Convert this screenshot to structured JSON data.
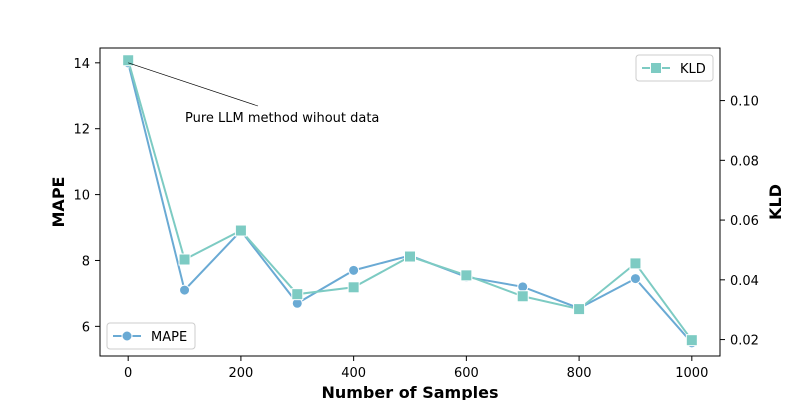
{
  "chart_data": {
    "type": "line",
    "x": [
      0,
      100,
      200,
      300,
      400,
      500,
      600,
      700,
      800,
      900,
      1000
    ],
    "xlabel": "Number of Samples",
    "xlim": [
      -50,
      1050
    ],
    "xticks": [
      0,
      200,
      400,
      600,
      800,
      1000
    ],
    "y_left": {
      "label": "MAPE",
      "lim": [
        5.1,
        14.45
      ],
      "ticks": [
        6,
        8,
        10,
        12,
        14
      ]
    },
    "y_right": {
      "label": "KLD",
      "lim": [
        0.0145,
        0.1176
      ],
      "ticks": [
        0.02,
        0.04,
        0.06,
        0.08,
        0.1
      ],
      "tick_labels": [
        "0.02",
        "0.04",
        "0.06",
        "0.08",
        "0.10"
      ]
    },
    "series": [
      {
        "name": "MAPE",
        "axis": "left",
        "marker": "circle",
        "color": "#6aaad4",
        "values": [
          14.0,
          7.1,
          8.9,
          6.7,
          7.7,
          8.15,
          7.5,
          7.2,
          6.55,
          7.45,
          5.5
        ]
      },
      {
        "name": "KLD",
        "axis": "right",
        "marker": "square",
        "color": "#7dcbc3",
        "values": [
          0.1135,
          0.0468,
          0.0565,
          0.0352,
          0.0375,
          0.0478,
          0.0415,
          0.0345,
          0.0302,
          0.0455,
          0.0198
        ]
      }
    ],
    "annotation": {
      "text": "Pure LLM method wihout data",
      "target_x": 0,
      "target_series": "MAPE"
    },
    "legends": [
      {
        "placement": "lower-left",
        "series": "MAPE"
      },
      {
        "placement": "upper-right",
        "series": "KLD"
      }
    ],
    "grid": false
  }
}
